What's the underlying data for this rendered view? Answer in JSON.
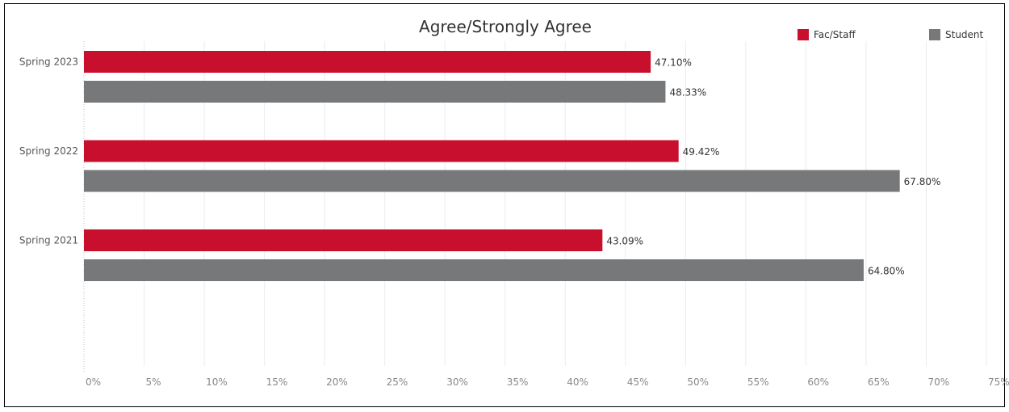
{
  "chart_data": {
    "type": "bar",
    "orientation": "horizontal",
    "title": "Agree/Strongly Agree",
    "categories": [
      "Spring 2023",
      "Spring 2022",
      "Spring 2021"
    ],
    "series": [
      {
        "name": "Fac/Staff",
        "color": "#c8102e",
        "values": [
          47.1,
          49.42,
          43.09
        ],
        "labels": [
          "47.10%",
          "49.42%",
          "43.09%"
        ]
      },
      {
        "name": "Student",
        "color": "#76787a",
        "values": [
          48.33,
          67.8,
          64.8
        ],
        "labels": [
          "48.33%",
          "67.80%",
          "64.80%"
        ]
      }
    ],
    "xlim": [
      0,
      75
    ],
    "xticks": [
      0,
      5,
      10,
      15,
      20,
      25,
      30,
      35,
      40,
      45,
      50,
      55,
      60,
      65,
      70,
      75
    ],
    "xtick_labels": [
      "0%",
      "5%",
      "10%",
      "15%",
      "20%",
      "25%",
      "30%",
      "35%",
      "40%",
      "45%",
      "50%",
      "55%",
      "60%",
      "65%",
      "70%",
      "75%"
    ],
    "grid": true,
    "legend_position": "top-right"
  }
}
